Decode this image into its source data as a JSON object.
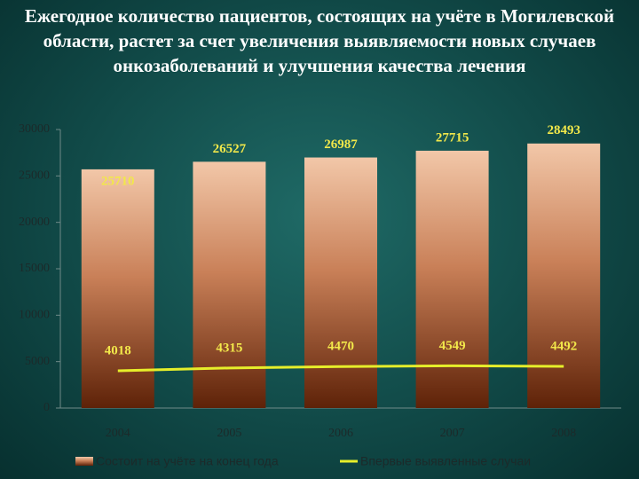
{
  "chart_data": {
    "type": "bar",
    "title": "Ежегодное количество пациентов, состоящих на учёте в Могилевской области, растет за счет увеличения выявляемости новых случаев онкозаболеваний и улучшения качества лечения",
    "categories": [
      "2004",
      "2005",
      "2006",
      "2007",
      "2008"
    ],
    "series": [
      {
        "name": "Состоит на учёте на конец года",
        "type": "bar",
        "color": "#c98058",
        "values": [
          25710,
          26527,
          26987,
          27715,
          28493
        ]
      },
      {
        "name": "Впервые выявленные случаи",
        "type": "line",
        "color": "#e6ee2a",
        "values": [
          4018,
          4315,
          4470,
          4549,
          4492
        ]
      }
    ],
    "ylim": [
      0,
      30000
    ],
    "yticks": [
      0,
      5000,
      10000,
      15000,
      20000,
      25000,
      30000
    ],
    "grid": false,
    "legend": "bottom"
  }
}
